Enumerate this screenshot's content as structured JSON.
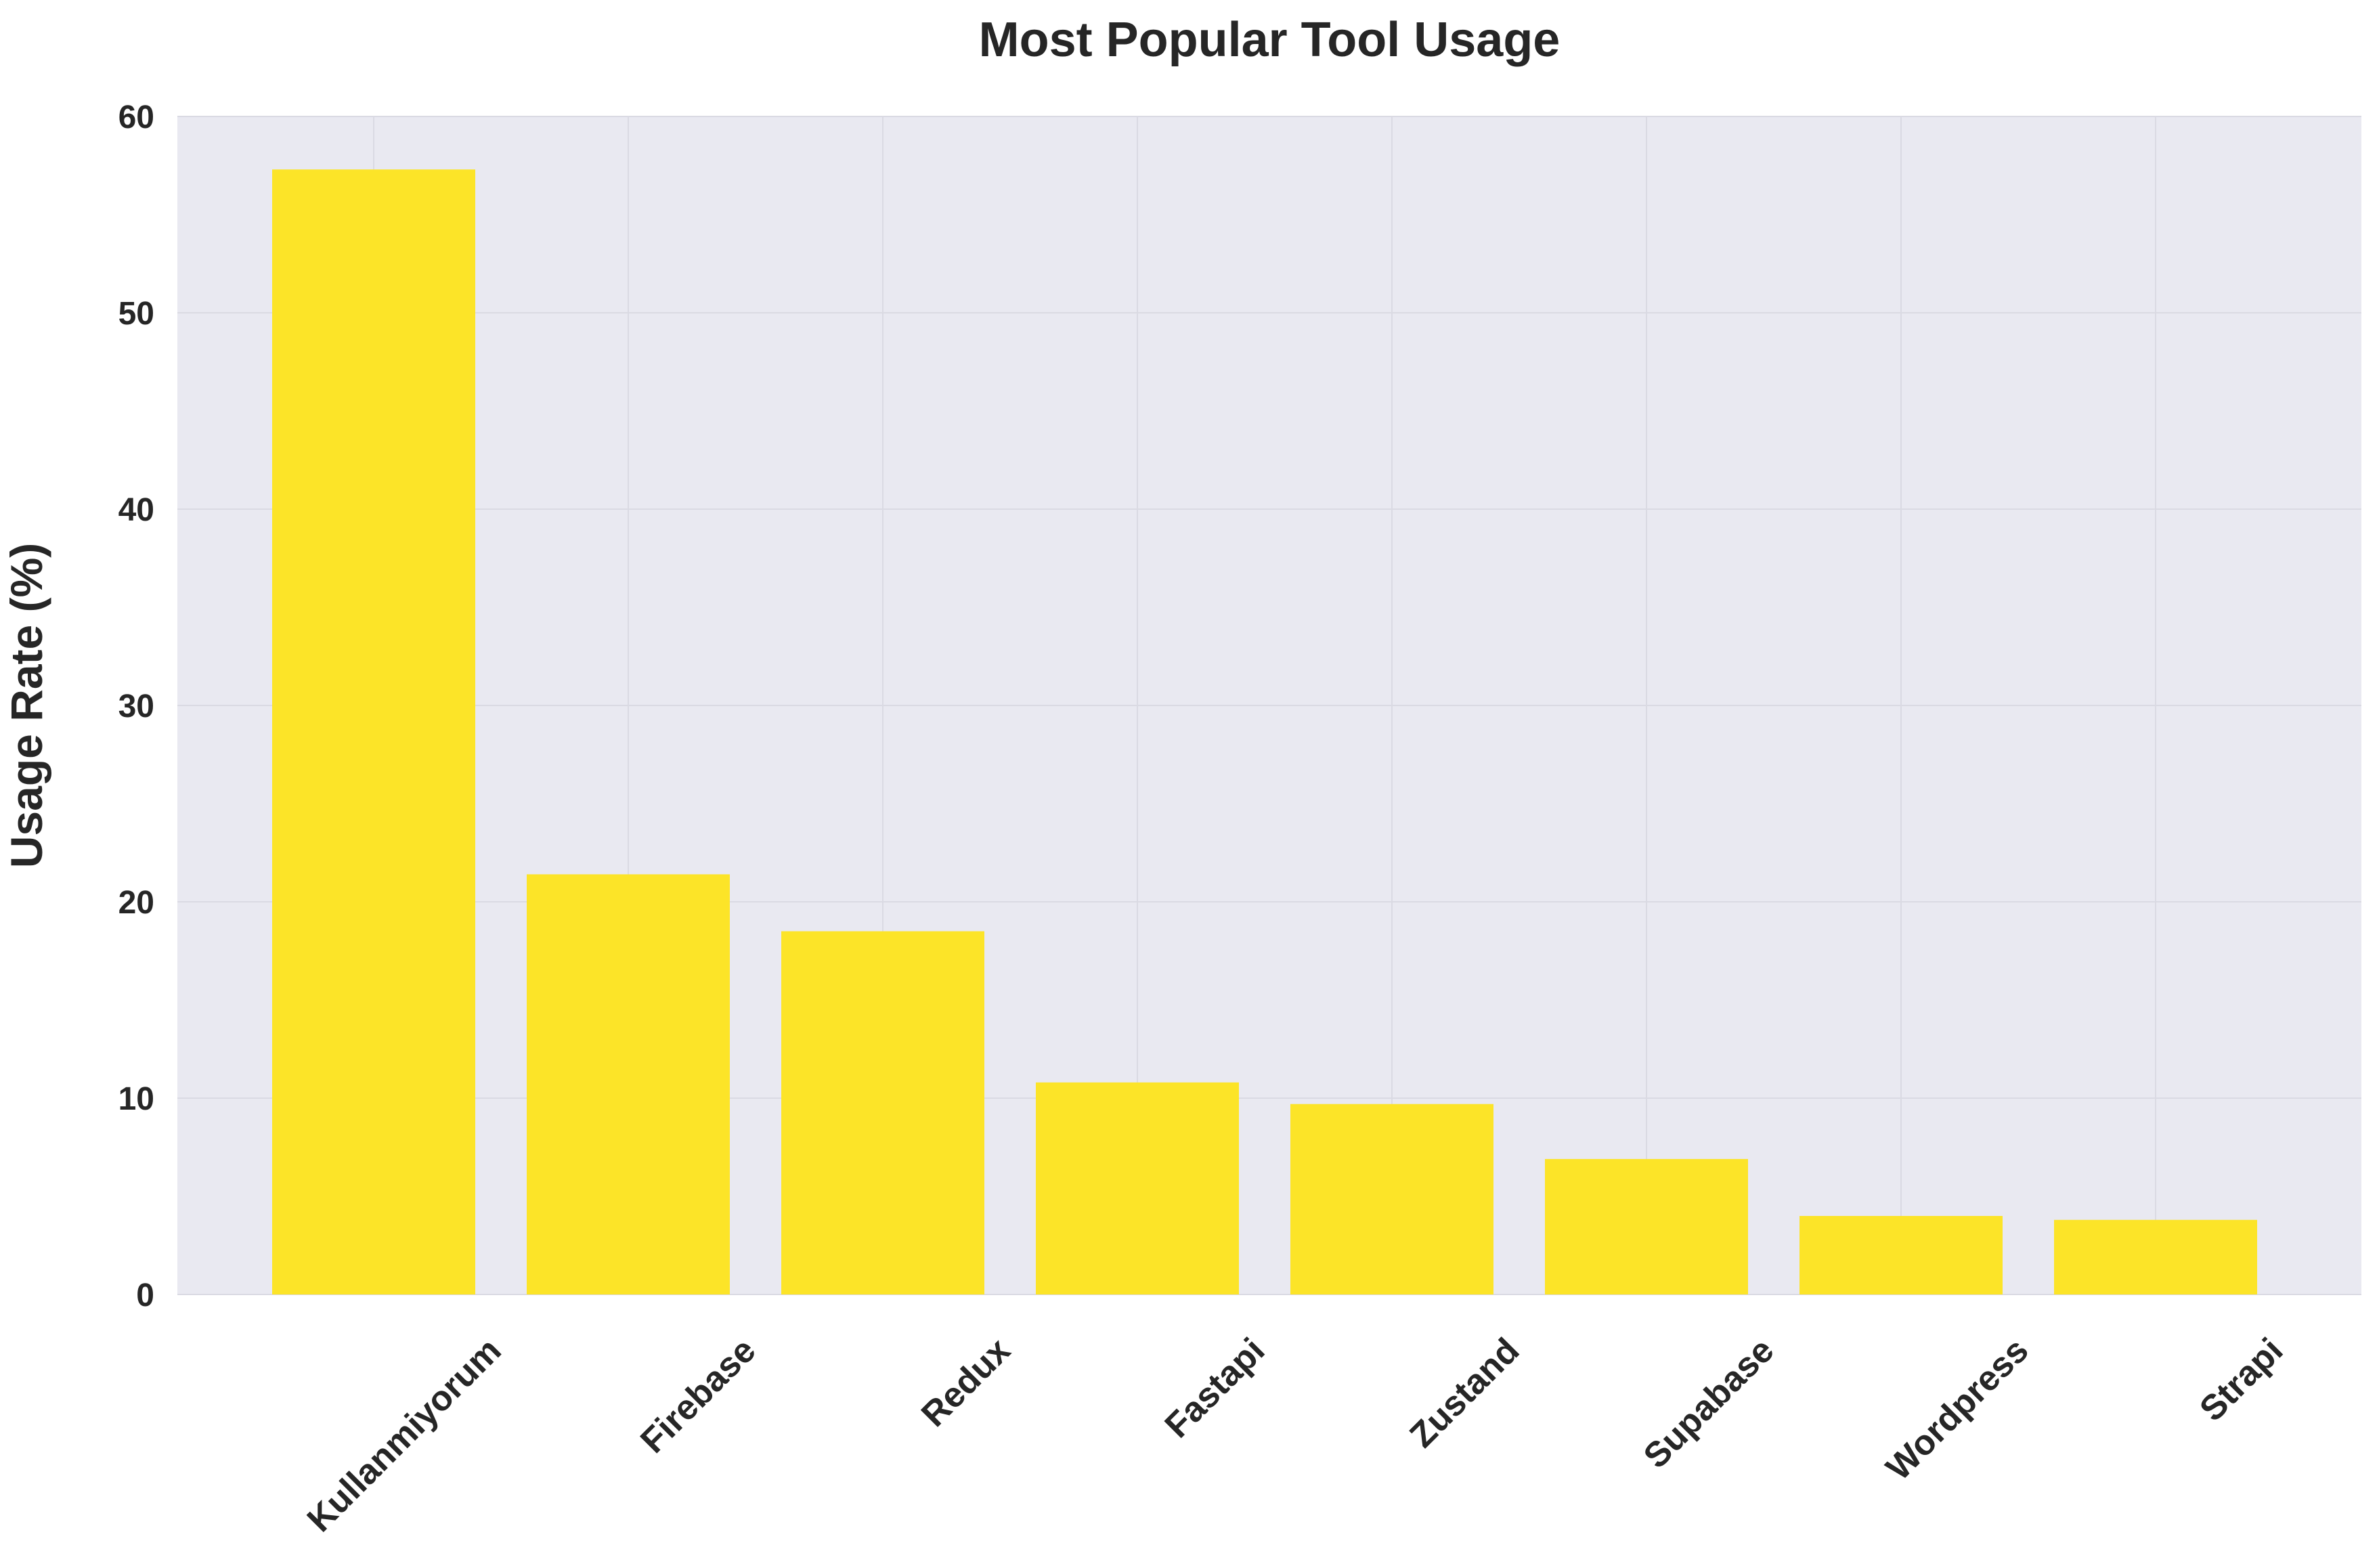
{
  "chart_data": {
    "type": "bar",
    "title": "Most Popular Tool Usage",
    "xlabel": "",
    "ylabel": "Usage Rate (%)",
    "categories": [
      "Kullanmiyorum",
      "Firebase",
      "Redux",
      "Fastapi",
      "Zustand",
      "Supabase",
      "Wordpress",
      "Strapi"
    ],
    "values": [
      57.3,
      21.4,
      18.5,
      10.8,
      9.7,
      6.9,
      4.0,
      3.8
    ],
    "ylim": [
      0,
      60
    ],
    "yticks": [
      0,
      10,
      20,
      30,
      40,
      50,
      60
    ],
    "grid": true,
    "bar_color": "#FCE428",
    "plot_background": "#E9E9F1",
    "grid_color": "#DADAE3"
  }
}
